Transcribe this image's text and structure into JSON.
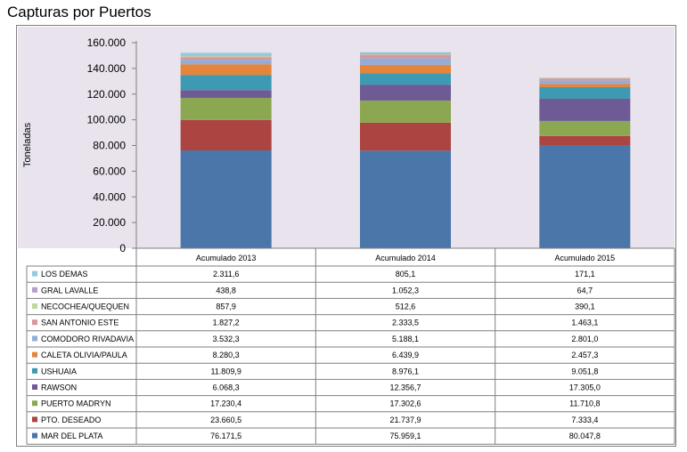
{
  "title": "Capturas por  Puertos",
  "chart_data": {
    "type": "bar",
    "stacked": true,
    "title": "Capturas por  Puertos",
    "ylabel": "Toneladas",
    "xlabel": "",
    "ylim": [
      0,
      160000
    ],
    "y_ticks": [
      0,
      20000,
      40000,
      60000,
      80000,
      100000,
      120000,
      140000,
      160000
    ],
    "y_tick_labels": [
      "0",
      "20.000",
      "40.000",
      "60.000",
      "80.000",
      "100.000",
      "120.000",
      "140.000",
      "160.000"
    ],
    "categories": [
      "Acumulado 2013",
      "Acumulado 2014",
      "Acumulado 2015"
    ],
    "series": [
      {
        "name": "MAR DEL PLATA",
        "color": "#4a76aa",
        "values": [
          76171.5,
          75959.1,
          80047.8
        ],
        "labels": [
          "76.171,5",
          "75.959,1",
          "80.047,8"
        ]
      },
      {
        "name": "PTO. DESEADO",
        "color": "#ac4441",
        "values": [
          23660.5,
          21737.9,
          7333.4
        ],
        "labels": [
          "23.660,5",
          "21.737,9",
          "7.333,4"
        ]
      },
      {
        "name": "PUERTO MADRYN",
        "color": "#8ca752",
        "values": [
          17230.4,
          17302.6,
          11710.8
        ],
        "labels": [
          "17.230,4",
          "17.302,6",
          "11.710,8"
        ]
      },
      {
        "name": "RAWSON",
        "color": "#6e5b95",
        "values": [
          6068.3,
          12356.7,
          17305.0
        ],
        "labels": [
          "6.068,3",
          "12.356,7",
          "17.305,0"
        ]
      },
      {
        "name": "USHUAIA",
        "color": "#3e99b3",
        "values": [
          11809.9,
          8976.1,
          9051.8
        ],
        "labels": [
          "11.809,9",
          "8.976,1",
          "9.051,8"
        ]
      },
      {
        "name": "CALETA OLIVIA/PAULA",
        "color": "#e5843b",
        "values": [
          8280.3,
          6439.9,
          2457.3
        ],
        "labels": [
          "8.280,3",
          "6.439,9",
          "2.457,3"
        ]
      },
      {
        "name": "COMODORO RIVADAVIA",
        "color": "#95add6",
        "values": [
          3532.3,
          5188.1,
          2801.0
        ],
        "labels": [
          "3.532,3",
          "5.188,1",
          "2.801,0"
        ]
      },
      {
        "name": "SAN ANTONIO ESTE",
        "color": "#d99694",
        "values": [
          1827.2,
          2333.5,
          1463.1
        ],
        "labels": [
          "1.827,2",
          "2.333,5",
          "1.463,1"
        ]
      },
      {
        "name": "NECOCHEA/QUEQUEN",
        "color": "#c3d69b",
        "values": [
          857.9,
          512.6,
          390.1
        ],
        "labels": [
          "857,9",
          "512,6",
          "390,1"
        ]
      },
      {
        "name": "GRAL LAVALLE",
        "color": "#b3a2c7",
        "values": [
          438.8,
          1052.3,
          64.7
        ],
        "labels": [
          "438,8",
          "1.052,3",
          "64,7"
        ]
      },
      {
        "name": "LOS DEMAS",
        "color": "#93cddd",
        "values": [
          2311.6,
          805.1,
          171.1
        ],
        "labels": [
          "2.311,6",
          "805,1",
          "171,1"
        ]
      }
    ]
  }
}
